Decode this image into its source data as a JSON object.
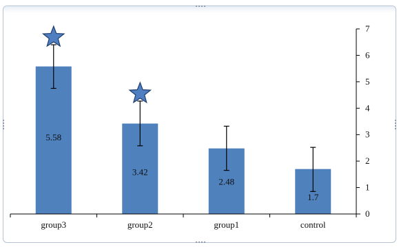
{
  "chart_data": {
    "type": "bar",
    "categories": [
      "group3",
      "group2",
      "group1",
      "control"
    ],
    "values": [
      5.58,
      3.42,
      2.48,
      1.7
    ],
    "value_labels": [
      "5.58",
      "3.42",
      "2.48",
      "1.7"
    ],
    "error_bars": [
      {
        "low": 4.75,
        "high": 6.4
      },
      {
        "low": 2.58,
        "high": 4.27
      },
      {
        "low": 1.65,
        "high": 3.32
      },
      {
        "low": 0.85,
        "high": 2.52
      }
    ],
    "significance_markers": [
      "star",
      "star",
      "none",
      "none"
    ],
    "ylim": [
      0,
      7
    ],
    "yticks": [
      "0",
      "1",
      "2",
      "3",
      "4",
      "5",
      "6",
      "7"
    ],
    "y_axis_side": "right",
    "grid": false,
    "legend": "none",
    "title": "",
    "xlabel": "",
    "ylabel": "",
    "colors": {
      "bar": "#4f81bd",
      "star_fill": "#4f7fc0",
      "star_stroke": "#1f3d6e",
      "axis": "#000000",
      "frame": "#b7c3d3"
    }
  }
}
